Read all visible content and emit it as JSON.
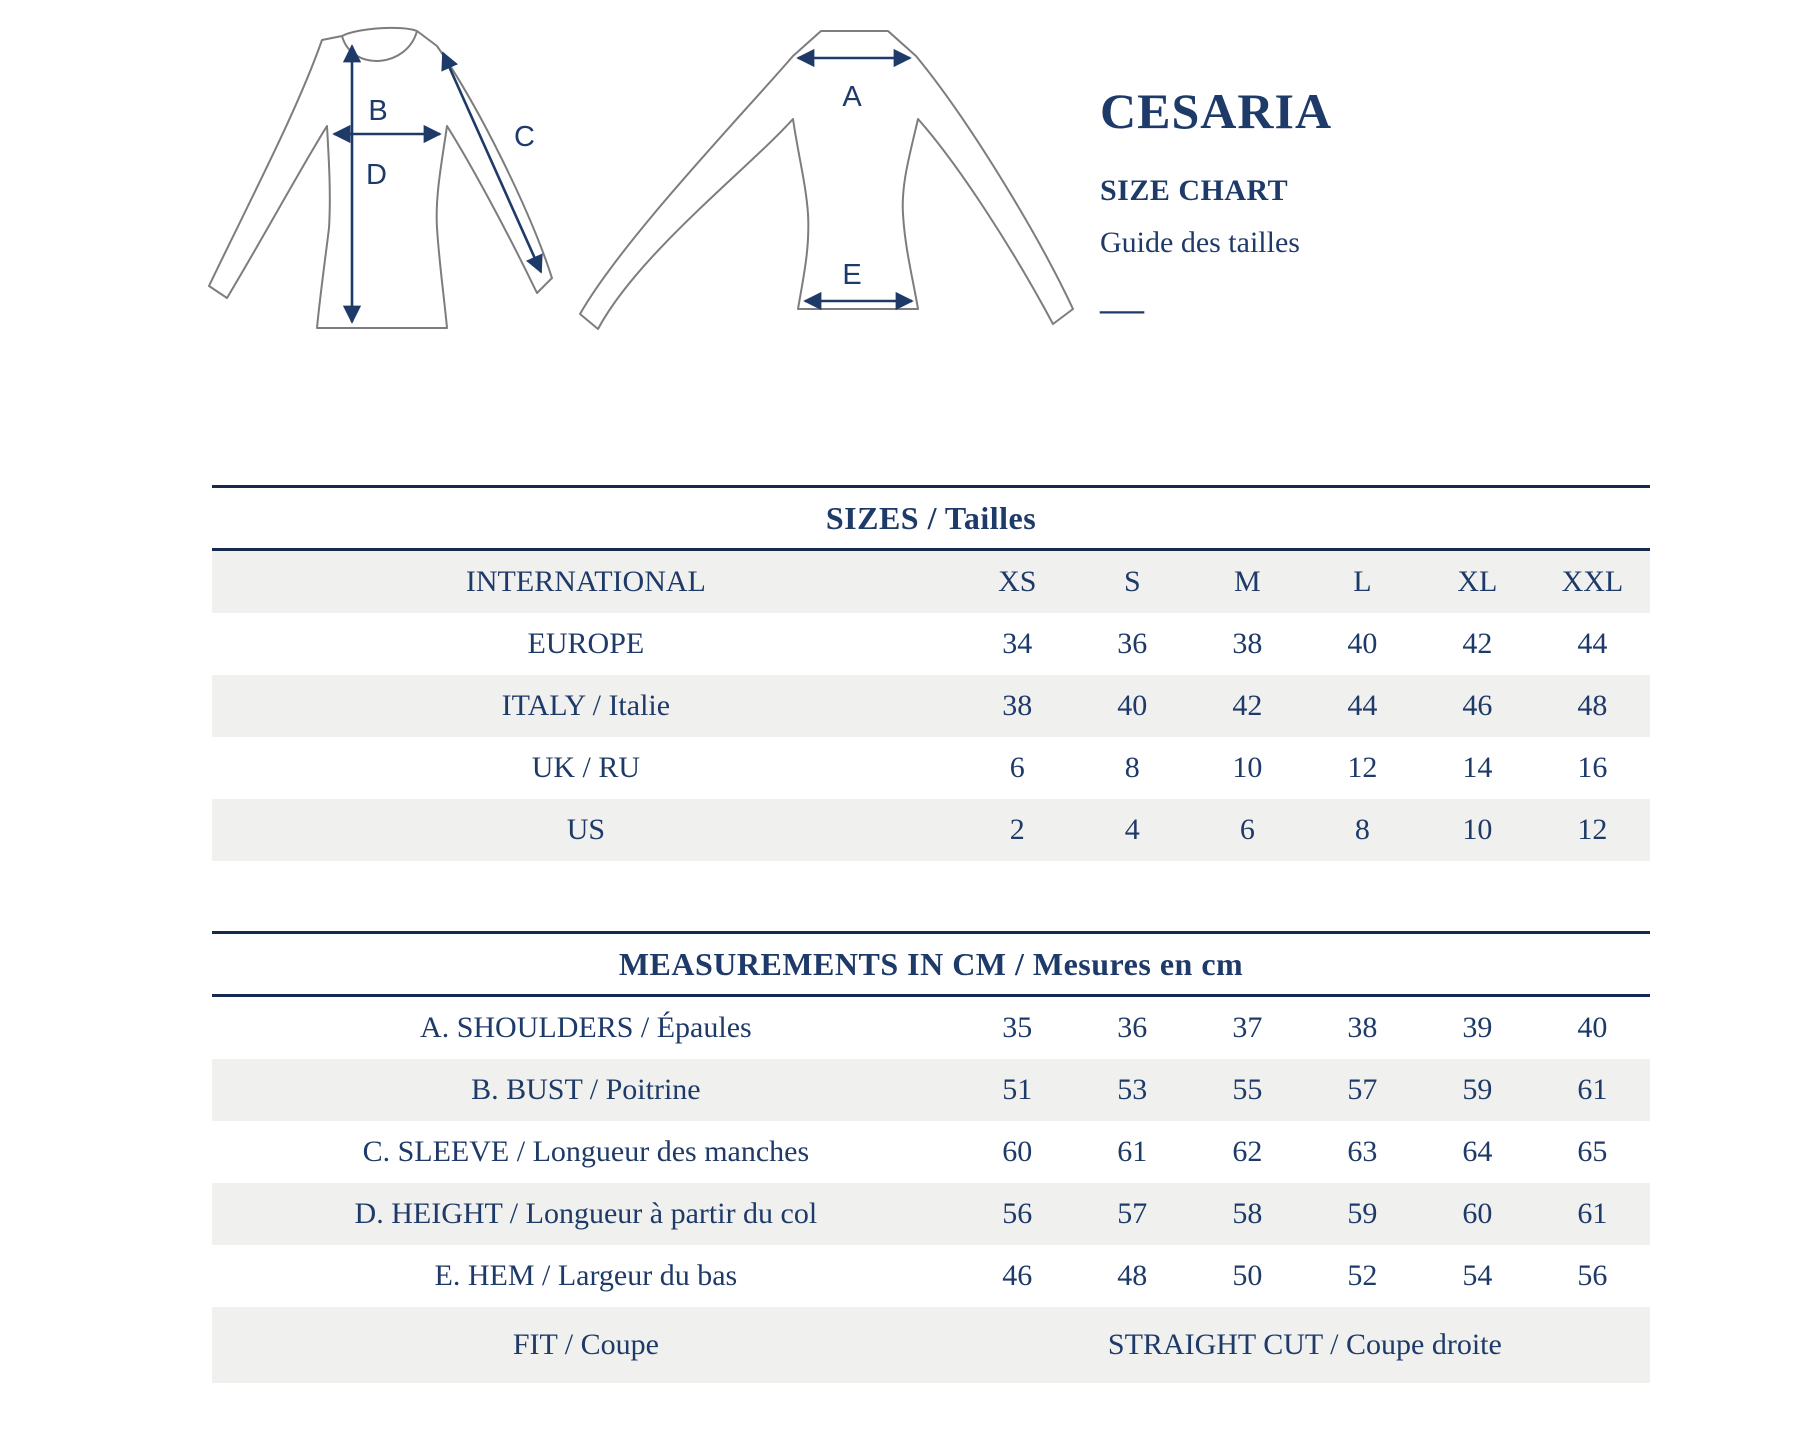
{
  "brand": {
    "name": "CESARIA",
    "size_chart_label": "SIZE CHART",
    "size_guide_label_fr": "Guide des tailles",
    "dash": "—"
  },
  "diagrams": {
    "front_view": {
      "labels": {
        "b": "B",
        "c": "C",
        "d": "D"
      }
    },
    "back_view": {
      "labels": {
        "a": "A",
        "e": "E"
      }
    }
  },
  "colors": {
    "navy_text": "#1e3a68",
    "rule_line": "#16294e",
    "row_shade": "#f0f0ef",
    "garment_outline": "#7d7d7d"
  },
  "sizes_table": {
    "title": "SIZES / Tailles",
    "rows": [
      {
        "label": "INTERNATIONAL",
        "values": [
          "XS",
          "S",
          "M",
          "L",
          "XL",
          "XXL"
        ]
      },
      {
        "label": "EUROPE",
        "values": [
          "34",
          "36",
          "38",
          "40",
          "42",
          "44"
        ]
      },
      {
        "label": "ITALY / Italie",
        "values": [
          "38",
          "40",
          "42",
          "44",
          "46",
          "48"
        ]
      },
      {
        "label": "UK / RU",
        "values": [
          "6",
          "8",
          "10",
          "12",
          "14",
          "16"
        ]
      },
      {
        "label": "US",
        "values": [
          "2",
          "4",
          "6",
          "8",
          "10",
          "12"
        ]
      }
    ]
  },
  "measurements_table": {
    "title": "MEASUREMENTS IN CM / Mesures en cm",
    "rows": [
      {
        "label": "A. SHOULDERS / Épaules",
        "values": [
          "35",
          "36",
          "37",
          "38",
          "39",
          "40"
        ]
      },
      {
        "label": "B. BUST / Poitrine",
        "values": [
          "51",
          "53",
          "55",
          "57",
          "59",
          "61"
        ]
      },
      {
        "label": "C. SLEEVE / Longueur des manches",
        "values": [
          "60",
          "61",
          "62",
          "63",
          "64",
          "65"
        ]
      },
      {
        "label": "D. HEIGHT / Longueur à partir du col",
        "values": [
          "56",
          "57",
          "58",
          "59",
          "60",
          "61"
        ]
      },
      {
        "label": "E. HEM / Largeur du bas",
        "values": [
          "46",
          "48",
          "50",
          "52",
          "54",
          "56"
        ]
      },
      {
        "label": "FIT / Coupe",
        "span_value": "STRAIGHT CUT / Coupe droite"
      }
    ]
  }
}
